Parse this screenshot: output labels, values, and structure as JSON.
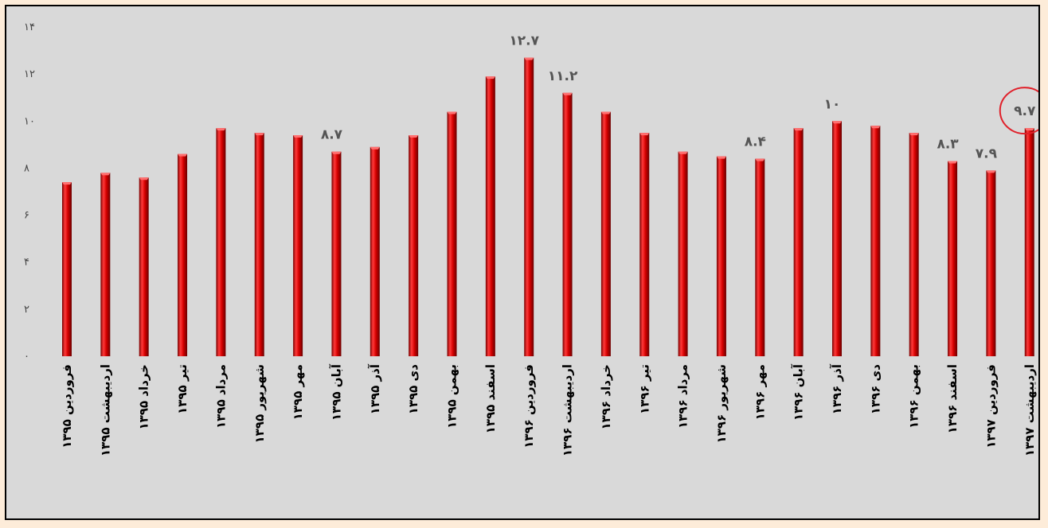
{
  "chart_data": {
    "type": "bar",
    "title": "",
    "xlabel": "",
    "ylabel": "",
    "ylim": [
      0,
      14
    ],
    "yticks": [
      0,
      2,
      4,
      6,
      8,
      10,
      12,
      14
    ],
    "ytick_labels": [
      "۰",
      "۲",
      "۴",
      "۶",
      "۸",
      "۱۰",
      "۱۲",
      "۱۴"
    ],
    "grid": false,
    "legend": "none",
    "bar_color": "#cc0000",
    "highlight_color": "#e0202a",
    "categories": [
      "فروردین ۱۳۹۵",
      "اردیبهشت ۱۳۹۵",
      "خرداد ۱۳۹۵",
      "تیر ۱۳۹۵",
      "مرداد ۱۳۹۵",
      "شهریور ۱۳۹۵",
      "مهر ۱۳۹۵",
      "آبان ۱۳۹۵",
      "آذر ۱۳۹۵",
      "دی ۱۳۹۵",
      "بهمن ۱۳۹۵",
      "اسفند ۱۳۹۵",
      "فروردین ۱۳۹۶",
      "اردیبهشت ۱۳۹۶",
      "خرداد ۱۳۹۶",
      "تیر ۱۳۹۶",
      "مرداد ۱۳۹۶",
      "شهریور ۱۳۹۶",
      "مهر ۱۳۹۶",
      "آبان ۱۳۹۶",
      "آذر ۱۳۹۶",
      "دی ۱۳۹۶",
      "بهمن ۱۳۹۶",
      "اسفند ۱۳۹۶",
      "فروردین ۱۳۹۷",
      "اردیبهشت ۱۳۹۷"
    ],
    "values": [
      7.4,
      7.8,
      7.6,
      8.6,
      9.7,
      9.5,
      9.4,
      8.7,
      8.9,
      9.4,
      10.4,
      11.9,
      12.7,
      11.2,
      10.4,
      9.5,
      8.7,
      8.5,
      8.4,
      9.7,
      10.0,
      9.8,
      9.5,
      8.3,
      7.9,
      9.7
    ],
    "data_labels": [
      {
        "index": 7,
        "text": "۸.۷"
      },
      {
        "index": 12,
        "text": "۱۲.۷"
      },
      {
        "index": 13,
        "text": "۱۱.۲"
      },
      {
        "index": 18,
        "text": "۸.۴"
      },
      {
        "index": 20,
        "text": "۱۰"
      },
      {
        "index": 23,
        "text": "۸.۳"
      },
      {
        "index": 24,
        "text": "۷.۹"
      },
      {
        "index": 25,
        "text": "۹.۷"
      }
    ],
    "highlighted_index": 25
  }
}
